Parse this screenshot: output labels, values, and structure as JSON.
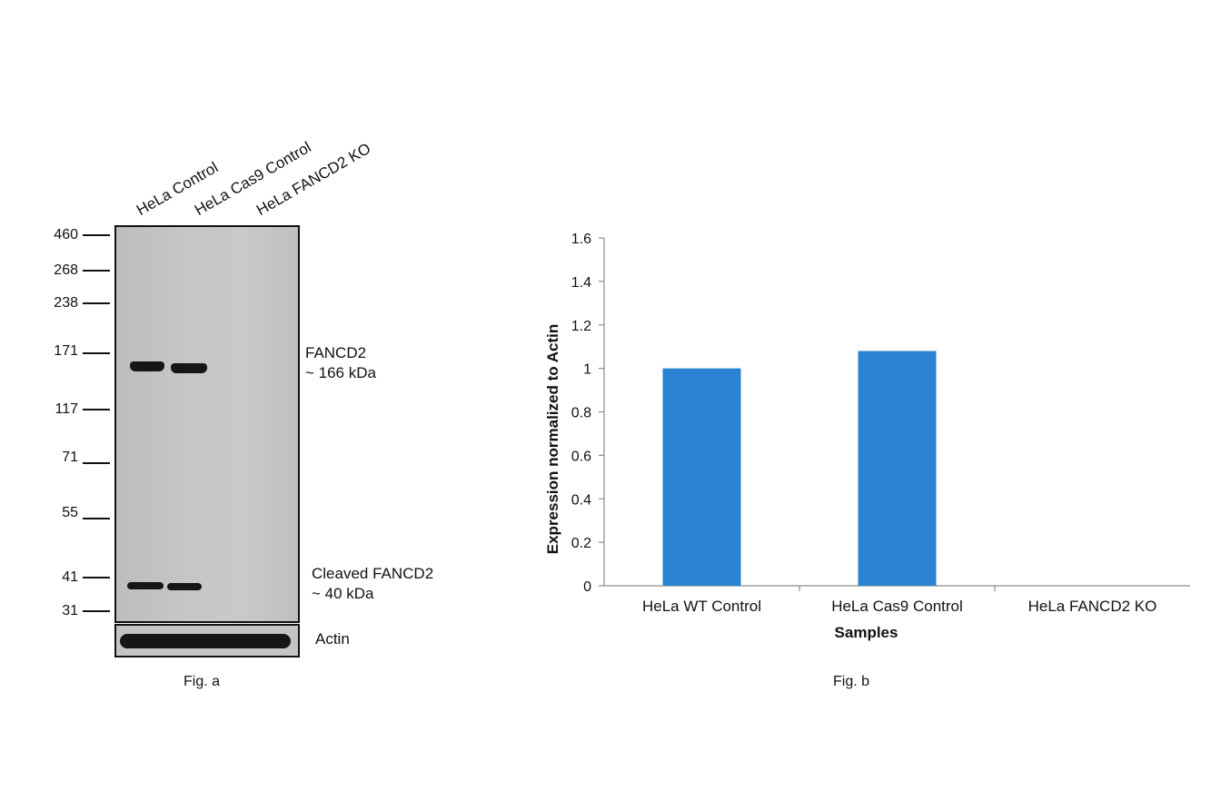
{
  "western_blot": {
    "lanes": [
      "HeLa Control",
      "HeLa Cas9 Control",
      "HeLa FANCD2 KO"
    ],
    "markers": [
      "460",
      "268",
      "238",
      "171",
      "117",
      "71",
      "55",
      "41",
      "31"
    ],
    "band_fancd2": {
      "line1": "FANCD2",
      "line2": "~ 166 kDa"
    },
    "band_cleaved": {
      "line1": "Cleaved FANCD2",
      "line2": "~ 40 kDa"
    },
    "loading_control": "Actin",
    "caption": "Fig. a"
  },
  "chart_caption": "Fig. b",
  "chart_data": {
    "type": "bar",
    "categories": [
      "HeLa WT Control",
      "HeLa Cas9 Control",
      "HeLa FANCD2 KO"
    ],
    "values": [
      1.0,
      1.08,
      0
    ],
    "title": "",
    "xlabel": "Samples",
    "ylabel": "Expression normalized to Actin",
    "ylim": [
      0,
      1.6
    ],
    "yticks": [
      "0",
      "0.2",
      "0.4",
      "0.6",
      "0.8",
      "1",
      "1.2",
      "1.4",
      "1.6"
    ],
    "grid": false,
    "bar_color": "#2b83d4"
  }
}
